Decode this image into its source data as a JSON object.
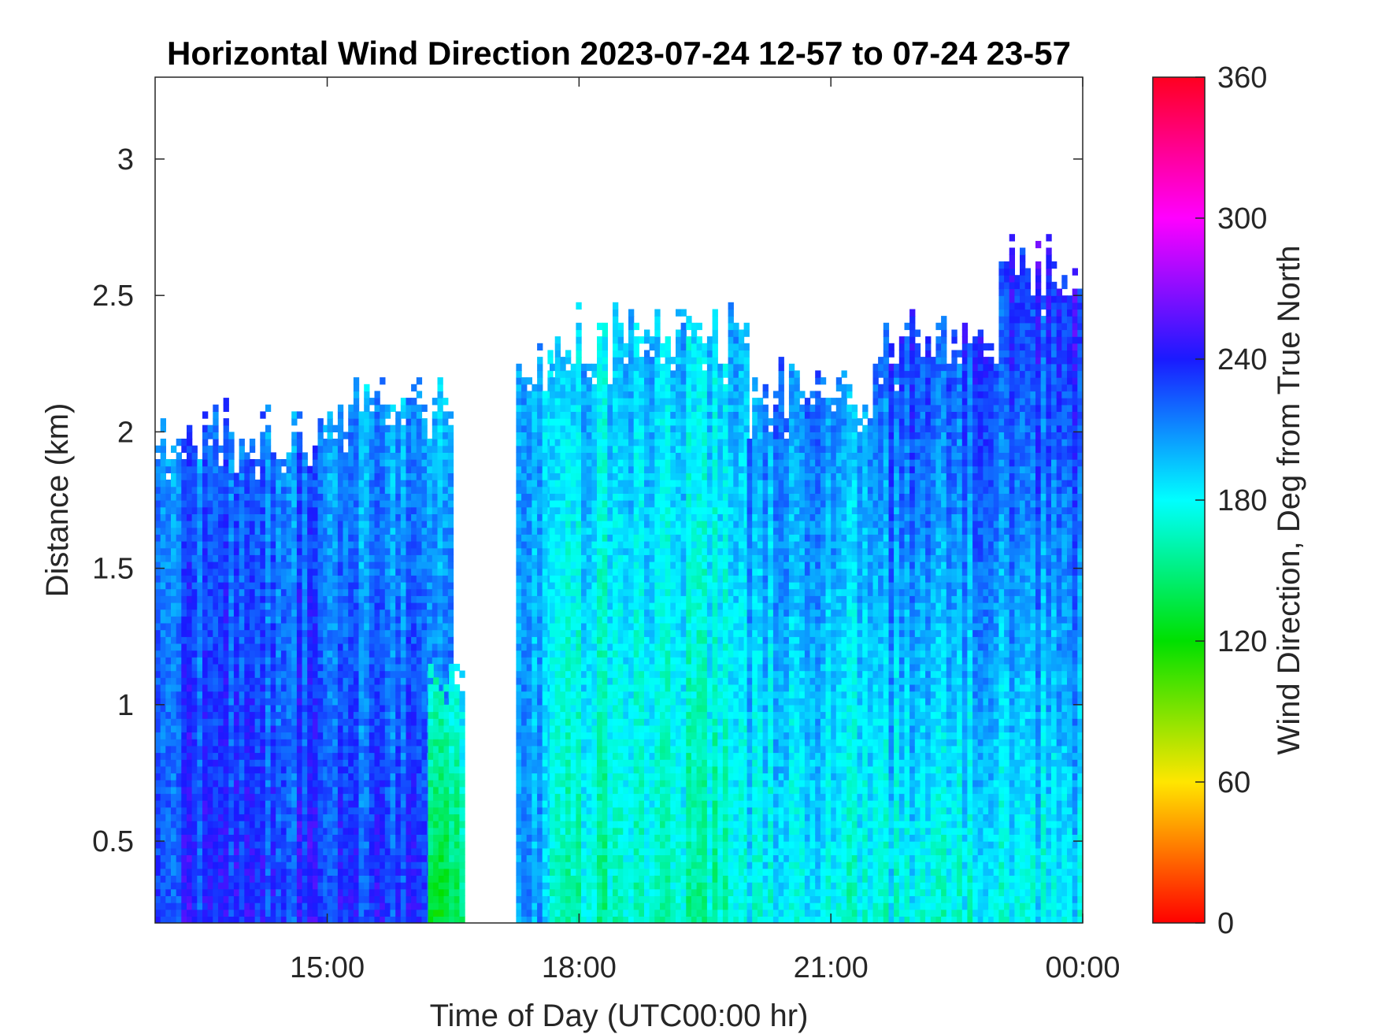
{
  "chart_data": {
    "type": "heatmap",
    "title": "Horizontal Wind Direction 2023-07-24 12-57 to 07-24 23-57",
    "xlabel": "Time of Day (UTC00:00 hr)",
    "ylabel": "Distance (km)",
    "x_range_hours": [
      12.95,
      24.0
    ],
    "x_ticks": [
      {
        "value": 15,
        "label": "15:00"
      },
      {
        "value": 18,
        "label": "18:00"
      },
      {
        "value": 21,
        "label": "21:00"
      },
      {
        "value": 24,
        "label": "00:00"
      }
    ],
    "y_range_km": [
      0.2,
      3.3
    ],
    "y_ticks": [
      {
        "value": 0.5,
        "label": "0.5"
      },
      {
        "value": 1,
        "label": "1"
      },
      {
        "value": 1.5,
        "label": "1.5"
      },
      {
        "value": 2,
        "label": "2"
      },
      {
        "value": 2.5,
        "label": "2.5"
      },
      {
        "value": 3,
        "label": "3"
      }
    ],
    "colorbar": {
      "label": "Wind Direction, Deg from True North",
      "range": [
        0,
        360
      ],
      "ticks": [
        {
          "value": 0,
          "label": "0"
        },
        {
          "value": 60,
          "label": "60"
        },
        {
          "value": 120,
          "label": "120"
        },
        {
          "value": 180,
          "label": "180"
        },
        {
          "value": 240,
          "label": "240"
        },
        {
          "value": 300,
          "label": "300"
        },
        {
          "value": 360,
          "label": "360"
        }
      ],
      "colors": [
        "#ff0000",
        "#ffe600",
        "#00e000",
        "#00ffff",
        "#1a1aff",
        "#ff00ff",
        "#ff0020"
      ]
    },
    "grid": false,
    "legend": "none",
    "profiles": [
      {
        "t_start": 12.95,
        "t_end": 15.0,
        "top_km": 2.0,
        "low_deg": 235,
        "high_deg": 215
      },
      {
        "t_start": 15.0,
        "t_end": 16.5,
        "top_km": 2.1,
        "low_deg": 230,
        "high_deg": 200
      },
      {
        "t_start": 16.2,
        "t_end": 16.6,
        "top_km": 1.05,
        "low_deg": 140,
        "high_deg": 180
      },
      {
        "t_start": 17.25,
        "t_end": 17.65,
        "top_km": 2.25,
        "low_deg": 200,
        "high_deg": 195
      },
      {
        "t_start": 17.65,
        "t_end": 20.0,
        "top_km": 2.35,
        "low_deg": 165,
        "high_deg": 195
      },
      {
        "t_start": 20.0,
        "t_end": 21.5,
        "top_km": 2.15,
        "low_deg": 175,
        "high_deg": 210
      },
      {
        "t_start": 21.5,
        "t_end": 23.0,
        "top_km": 2.35,
        "low_deg": 175,
        "high_deg": 230
      },
      {
        "t_start": 23.0,
        "t_end": 24.0,
        "top_km": 2.6,
        "low_deg": 180,
        "high_deg": 240
      }
    ]
  }
}
